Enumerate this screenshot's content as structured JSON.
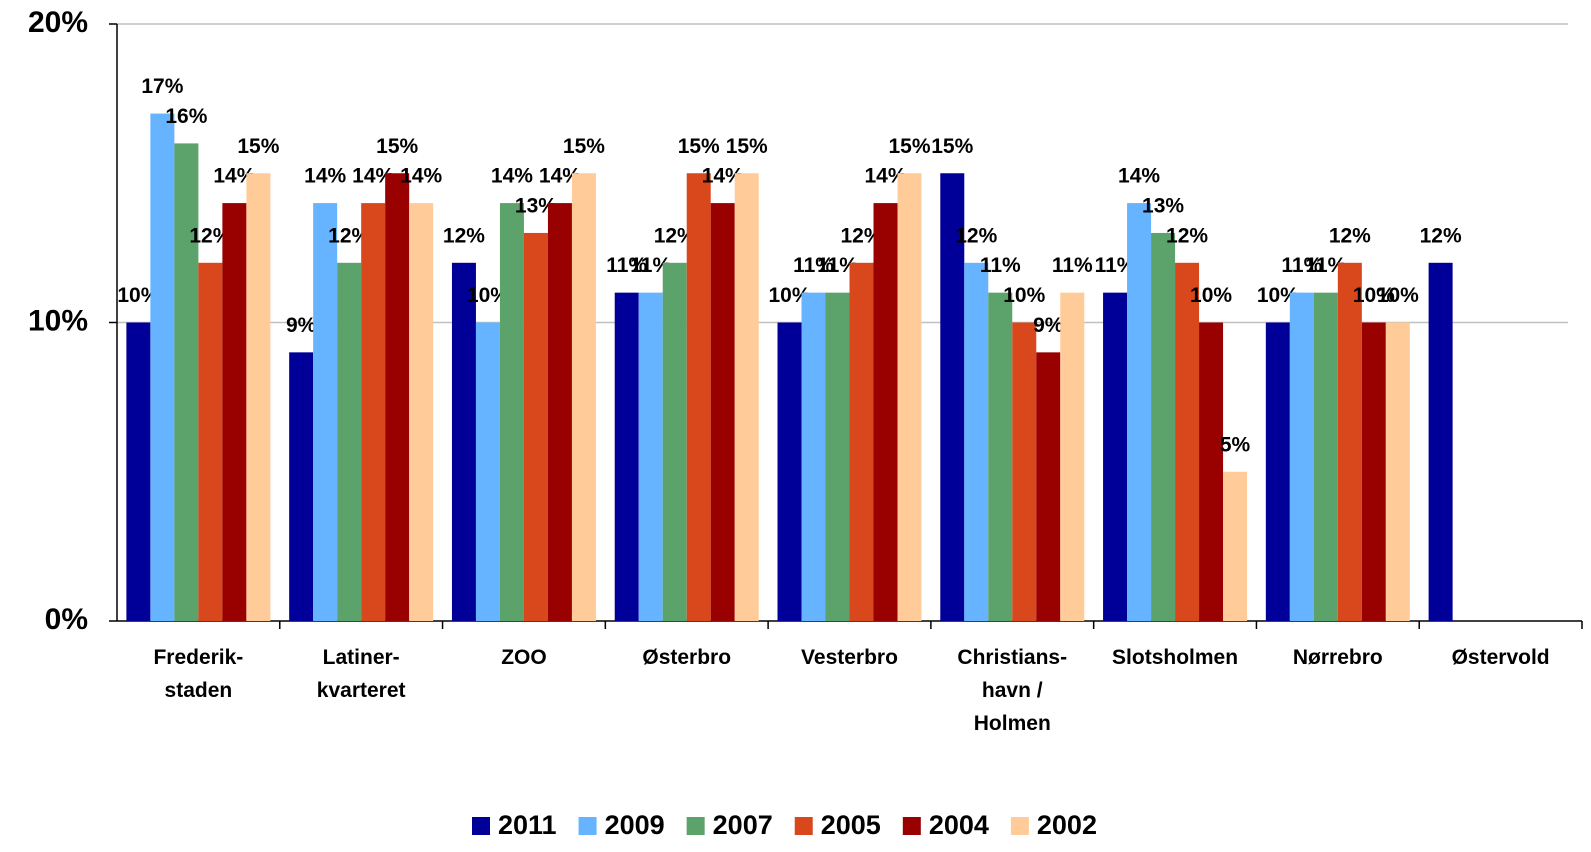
{
  "chart_data": {
    "type": "bar",
    "categories": [
      "Frederik-\nstaden",
      "Latiner-\nkvarteret",
      "ZOO",
      "Østerbro",
      "Vesterbro",
      "Christians-\nhavn /\nHolmen",
      "Slotsholmen",
      "Nørrebro",
      "Østervold"
    ],
    "series": [
      {
        "name": "2011",
        "color": "#000099",
        "values": [
          10,
          9,
          12,
          11,
          10,
          15,
          11,
          10,
          12
        ],
        "value_labels": [
          "10%",
          "9%",
          "12%",
          "11%",
          "10%",
          "15%",
          "11%",
          "10%",
          "12%"
        ]
      },
      {
        "name": "2009",
        "color": "#66b3ff",
        "values": [
          17,
          14,
          10,
          11,
          11,
          12,
          14,
          11,
          null
        ],
        "value_labels": [
          "17%",
          "14%",
          "10%",
          "11%",
          "11%",
          "12%",
          "14%",
          "11%",
          null
        ]
      },
      {
        "name": "2007",
        "color": "#5ba36b",
        "values": [
          16,
          12,
          14,
          12,
          11,
          11,
          13,
          11,
          null
        ],
        "value_labels": [
          "16%",
          "12%",
          "14%",
          "12%",
          "11%",
          "11%",
          "13%",
          "11%",
          null
        ]
      },
      {
        "name": "2005",
        "color": "#d9481c",
        "values": [
          12,
          14,
          13,
          15,
          12,
          10,
          12,
          12,
          null
        ],
        "value_labels": [
          "12%",
          "14%",
          "13%",
          "15%",
          "12%",
          "10%",
          "12%",
          "12%",
          null
        ]
      },
      {
        "name": "2004",
        "color": "#990000",
        "values": [
          14,
          15,
          14,
          14,
          14,
          9,
          10,
          10,
          null
        ],
        "value_labels": [
          "14%",
          "15%",
          "14%",
          "14%",
          "14%",
          "9%",
          "10%",
          "10%",
          null
        ]
      },
      {
        "name": "2002",
        "color": "#ffcc99",
        "values": [
          15,
          14,
          15,
          15,
          15,
          11,
          5,
          10,
          null
        ],
        "value_labels": [
          "15%",
          "14%",
          "15%",
          "15%",
          "15%",
          "11%",
          "5%",
          "10%",
          null
        ]
      }
    ],
    "ylim": [
      0,
      20
    ],
    "yticks": [
      {
        "value": 0,
        "label": "0%"
      },
      {
        "value": 10,
        "label": "10%"
      },
      {
        "value": 20,
        "label": "20%"
      }
    ],
    "grid": true,
    "legend": "bottom"
  }
}
